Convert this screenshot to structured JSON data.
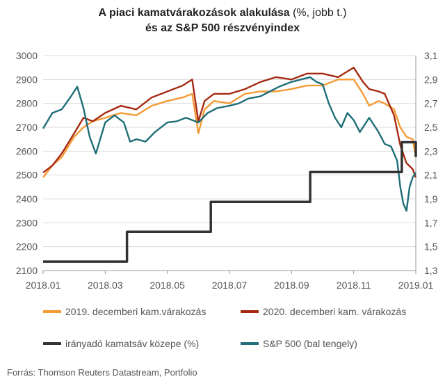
{
  "title": {
    "line1_bold": "A piaci kamatvárakozások alakulása",
    "line1_normal": " (%, jobb t.)",
    "line2": "és az S&P 500 részvényindex"
  },
  "source": "Forrás: Thomson Reuters Datastream, Portfolio",
  "colors": {
    "orange": "#f39a34",
    "darkred": "#a62a12",
    "black": "#333333",
    "teal": "#1f6e79"
  },
  "chart_data": {
    "type": "line",
    "x_ticks": [
      "2018.01",
      "2018.03",
      "2018.05",
      "2018.07",
      "2018.09",
      "2018.11",
      "2019.01"
    ],
    "y_left": {
      "ticks": [
        "2100",
        "2200",
        "2300",
        "2400",
        "2500",
        "2600",
        "2700",
        "2800",
        "2900",
        "3000"
      ],
      "lim": [
        2100,
        3000
      ]
    },
    "y_right": {
      "ticks": [
        "1,3",
        "1,5",
        "1,7",
        "1,9",
        "2,1",
        "2,3",
        "2,5",
        "2,7",
        "2,9",
        "3,1"
      ],
      "lim": [
        1.3,
        3.1
      ]
    },
    "x_range_months": [
      0,
      12
    ],
    "series": [
      {
        "name": "2019. decemberi kam.várakozás",
        "axis": "right",
        "color": "#f39a34",
        "points": [
          [
            0,
            2.08
          ],
          [
            0.3,
            2.18
          ],
          [
            0.6,
            2.25
          ],
          [
            1.0,
            2.42
          ],
          [
            1.3,
            2.5
          ],
          [
            1.6,
            2.55
          ],
          [
            2.0,
            2.58
          ],
          [
            2.5,
            2.62
          ],
          [
            3.0,
            2.6
          ],
          [
            3.5,
            2.68
          ],
          [
            4.0,
            2.72
          ],
          [
            4.5,
            2.75
          ],
          [
            4.8,
            2.78
          ],
          [
            5.0,
            2.45
          ],
          [
            5.2,
            2.65
          ],
          [
            5.5,
            2.72
          ],
          [
            6.0,
            2.7
          ],
          [
            6.5,
            2.78
          ],
          [
            7.0,
            2.8
          ],
          [
            7.5,
            2.8
          ],
          [
            8.0,
            2.82
          ],
          [
            8.5,
            2.85
          ],
          [
            9.0,
            2.85
          ],
          [
            9.5,
            2.9
          ],
          [
            10.0,
            2.9
          ],
          [
            10.3,
            2.78
          ],
          [
            10.5,
            2.68
          ],
          [
            10.8,
            2.72
          ],
          [
            11.0,
            2.7
          ],
          [
            11.3,
            2.65
          ],
          [
            11.5,
            2.5
          ],
          [
            11.7,
            2.42
          ],
          [
            11.9,
            2.4
          ],
          [
            12.0,
            2.25
          ]
        ]
      },
      {
        "name": "2020. decemberi kam. várakozás",
        "axis": "right",
        "color": "#a62a12",
        "points": [
          [
            0,
            2.12
          ],
          [
            0.3,
            2.18
          ],
          [
            0.6,
            2.28
          ],
          [
            1.0,
            2.45
          ],
          [
            1.3,
            2.58
          ],
          [
            1.6,
            2.55
          ],
          [
            2.0,
            2.62
          ],
          [
            2.5,
            2.68
          ],
          [
            3.0,
            2.65
          ],
          [
            3.5,
            2.75
          ],
          [
            4.0,
            2.8
          ],
          [
            4.5,
            2.85
          ],
          [
            4.8,
            2.9
          ],
          [
            5.0,
            2.55
          ],
          [
            5.2,
            2.72
          ],
          [
            5.5,
            2.78
          ],
          [
            6.0,
            2.78
          ],
          [
            6.5,
            2.82
          ],
          [
            7.0,
            2.88
          ],
          [
            7.5,
            2.92
          ],
          [
            8.0,
            2.9
          ],
          [
            8.5,
            2.95
          ],
          [
            9.0,
            2.95
          ],
          [
            9.5,
            2.92
          ],
          [
            10.0,
            3.0
          ],
          [
            10.3,
            2.88
          ],
          [
            10.5,
            2.82
          ],
          [
            10.8,
            2.8
          ],
          [
            11.0,
            2.78
          ],
          [
            11.3,
            2.6
          ],
          [
            11.5,
            2.35
          ],
          [
            11.7,
            2.2
          ],
          [
            11.9,
            2.15
          ],
          [
            12.0,
            2.08
          ]
        ]
      },
      {
        "name": "irányadó kamatsáv közepe (%)",
        "axis": "right",
        "color": "#333333",
        "points": [
          [
            0,
            1.375
          ],
          [
            2.7,
            1.375
          ],
          [
            2.7,
            1.625
          ],
          [
            5.4,
            1.625
          ],
          [
            5.4,
            1.875
          ],
          [
            8.6,
            1.875
          ],
          [
            8.6,
            2.125
          ],
          [
            11.55,
            2.125
          ],
          [
            11.55,
            2.375
          ],
          [
            12.0,
            2.375
          ],
          [
            12.0,
            2.25
          ]
        ]
      },
      {
        "name": "S&P 500 (bal tengely)",
        "axis": "left",
        "color": "#1f6e79",
        "points": [
          [
            0,
            2695
          ],
          [
            0.3,
            2760
          ],
          [
            0.6,
            2775
          ],
          [
            0.9,
            2830
          ],
          [
            1.1,
            2870
          ],
          [
            1.3,
            2780
          ],
          [
            1.5,
            2660
          ],
          [
            1.7,
            2590
          ],
          [
            2.0,
            2720
          ],
          [
            2.3,
            2750
          ],
          [
            2.6,
            2720
          ],
          [
            2.8,
            2640
          ],
          [
            3.0,
            2650
          ],
          [
            3.3,
            2640
          ],
          [
            3.6,
            2680
          ],
          [
            4.0,
            2720
          ],
          [
            4.3,
            2725
          ],
          [
            4.6,
            2740
          ],
          [
            5.0,
            2720
          ],
          [
            5.3,
            2760
          ],
          [
            5.6,
            2780
          ],
          [
            6.0,
            2790
          ],
          [
            6.3,
            2800
          ],
          [
            6.6,
            2820
          ],
          [
            7.0,
            2830
          ],
          [
            7.3,
            2850
          ],
          [
            7.6,
            2870
          ],
          [
            8.0,
            2890
          ],
          [
            8.3,
            2900
          ],
          [
            8.6,
            2910
          ],
          [
            8.8,
            2890
          ],
          [
            9.0,
            2880
          ],
          [
            9.2,
            2800
          ],
          [
            9.4,
            2740
          ],
          [
            9.6,
            2700
          ],
          [
            9.8,
            2760
          ],
          [
            10.0,
            2730
          ],
          [
            10.2,
            2680
          ],
          [
            10.5,
            2740
          ],
          [
            10.8,
            2680
          ],
          [
            11.0,
            2630
          ],
          [
            11.2,
            2620
          ],
          [
            11.4,
            2560
          ],
          [
            11.5,
            2450
          ],
          [
            11.6,
            2380
          ],
          [
            11.7,
            2350
          ],
          [
            11.8,
            2450
          ],
          [
            11.9,
            2490
          ],
          [
            12.0,
            2510
          ]
        ]
      }
    ],
    "legend": [
      {
        "label": "2019. decemberi kam.várakozás",
        "color": "#f39a34"
      },
      {
        "label": "2020. decemberi kam. várakozás",
        "color": "#a62a12"
      },
      {
        "label": "irányadó kamatsáv közepe (%)",
        "color": "#333333"
      },
      {
        "label": "S&P 500 (bal tengely)",
        "color": "#1f6e79"
      }
    ]
  }
}
